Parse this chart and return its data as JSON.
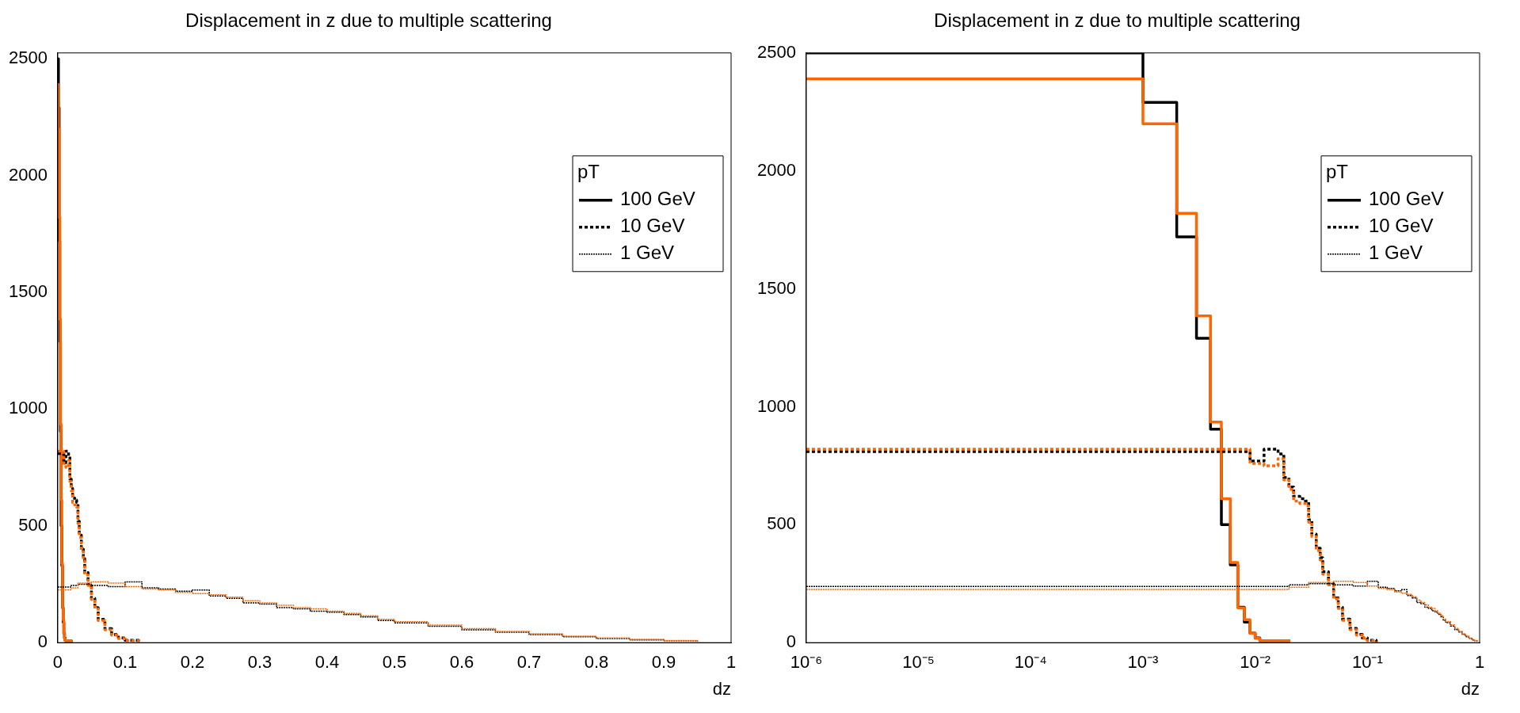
{
  "chart_data": [
    {
      "type": "step",
      "title": "Displacement in z due to multiple scattering",
      "xlabel": "dz",
      "xlim": [
        0,
        1
      ],
      "xticks": [
        0,
        0.1,
        0.2,
        0.3,
        0.4,
        0.5,
        0.6,
        0.7,
        0.8,
        0.9,
        1
      ],
      "ylim": [
        0,
        2525
      ],
      "yticks": [
        0,
        500,
        1000,
        1500,
        2000,
        2500
      ],
      "grid": false,
      "legend": "top right",
      "legend_title": "pT",
      "marker": "none",
      "series": [
        {
          "name": "100 GeV",
          "color": "#000000",
          "line_style": "solid",
          "x": [
            0,
            0.001,
            0.002,
            0.003,
            0.004,
            0.005,
            0.006,
            0.007,
            0.008,
            0.009,
            0.01,
            0.011,
            0.02
          ],
          "values": [
            2500,
            2290,
            1720,
            1290,
            905,
            500,
            330,
            150,
            87,
            40,
            20,
            8,
            0
          ]
        },
        {
          "color": "#ff6600",
          "line_style": "solid",
          "x": [
            0,
            0.001,
            0.002,
            0.003,
            0.004,
            0.005,
            0.006,
            0.007,
            0.008,
            0.009,
            0.01,
            0.011,
            0.02
          ],
          "values": [
            2390,
            2200,
            1820,
            1385,
            935,
            610,
            340,
            148,
            97,
            40,
            18,
            8,
            0
          ]
        },
        {
          "name": "10 GeV",
          "color": "#000000",
          "line_style": "dashed",
          "x": [
            0,
            0.009,
            0.012,
            0.016,
            0.018,
            0.02,
            0.022,
            0.025,
            0.028,
            0.03,
            0.032,
            0.035,
            0.038,
            0.04,
            0.045,
            0.05,
            0.055,
            0.06,
            0.07,
            0.08,
            0.09,
            0.1,
            0.12
          ],
          "values": [
            810,
            770,
            820,
            800,
            700,
            660,
            620,
            610,
            600,
            520,
            460,
            400,
            360,
            300,
            250,
            190,
            150,
            100,
            60,
            35,
            20,
            10,
            0
          ]
        },
        {
          "color": "#ff6600",
          "line_style": "dashed",
          "x": [
            0,
            0.009,
            0.012,
            0.016,
            0.018,
            0.02,
            0.022,
            0.025,
            0.028,
            0.03,
            0.032,
            0.035,
            0.038,
            0.04,
            0.045,
            0.05,
            0.055,
            0.06,
            0.07,
            0.08,
            0.09,
            0.1,
            0.12
          ],
          "values": [
            820,
            760,
            750,
            780,
            690,
            650,
            600,
            590,
            580,
            510,
            450,
            390,
            350,
            290,
            245,
            185,
            145,
            95,
            55,
            32,
            18,
            8,
            0
          ]
        },
        {
          "name": "1 GeV",
          "color": "#000000",
          "line_style": "dotted",
          "x": [
            0,
            0.02,
            0.03,
            0.05,
            0.075,
            0.1,
            0.125,
            0.15,
            0.175,
            0.2,
            0.225,
            0.25,
            0.275,
            0.3,
            0.325,
            0.35,
            0.375,
            0.4,
            0.425,
            0.45,
            0.475,
            0.5,
            0.55,
            0.6,
            0.65,
            0.7,
            0.75,
            0.8,
            0.85,
            0.9,
            0.95
          ],
          "values": [
            238,
            245,
            250,
            245,
            240,
            260,
            235,
            230,
            220,
            225,
            200,
            190,
            170,
            165,
            150,
            145,
            135,
            130,
            120,
            110,
            95,
            85,
            70,
            55,
            45,
            35,
            25,
            18,
            12,
            8,
            5
          ]
        },
        {
          "color": "#ff6600",
          "line_style": "dotted",
          "x": [
            0,
            0.02,
            0.03,
            0.05,
            0.075,
            0.1,
            0.125,
            0.15,
            0.175,
            0.2,
            0.225,
            0.25,
            0.275,
            0.3,
            0.325,
            0.35,
            0.375,
            0.4,
            0.425,
            0.45,
            0.475,
            0.5,
            0.55,
            0.6,
            0.65,
            0.7,
            0.75,
            0.8,
            0.85,
            0.9,
            0.95
          ],
          "values": [
            226,
            235,
            255,
            260,
            255,
            240,
            230,
            225,
            215,
            210,
            205,
            195,
            180,
            170,
            160,
            150,
            145,
            135,
            125,
            115,
            100,
            90,
            75,
            60,
            48,
            38,
            28,
            20,
            14,
            9,
            5
          ]
        }
      ]
    },
    {
      "type": "step",
      "title": "Displacement in z due to multiple scattering",
      "xlabel": "dz",
      "log": "x",
      "xlim": [
        1e-06,
        1
      ],
      "xticks": [
        {
          "value": 1e-06,
          "label": "10⁻⁶"
        },
        {
          "value": 1e-05,
          "label": "10⁻⁵"
        },
        {
          "value": 0.0001,
          "label": "10⁻⁴"
        },
        {
          "value": 0.001,
          "label": "10⁻³"
        },
        {
          "value": 0.01,
          "label": "10⁻²"
        },
        {
          "value": 0.1,
          "label": "10⁻¹"
        },
        1
      ],
      "ylim": [
        0,
        2500
      ],
      "yticks": [
        0,
        500,
        1000,
        1500,
        2000,
        2500
      ],
      "grid": false,
      "legend": "top right",
      "legend_title": "pT",
      "marker": "none",
      "series": [
        {
          "name": "100 GeV",
          "color": "#000000",
          "line_style": "solid",
          "x": [
            1e-06,
            0.001,
            0.002,
            0.003,
            0.004,
            0.005,
            0.006,
            0.007,
            0.008,
            0.009,
            0.01,
            0.011,
            0.02
          ],
          "values": [
            2500,
            2290,
            1720,
            1290,
            905,
            500,
            330,
            150,
            87,
            40,
            20,
            8,
            0
          ]
        },
        {
          "color": "#ff6600",
          "line_style": "solid",
          "x": [
            1e-06,
            0.001,
            0.002,
            0.003,
            0.004,
            0.005,
            0.006,
            0.007,
            0.008,
            0.009,
            0.01,
            0.011,
            0.02
          ],
          "values": [
            2390,
            2200,
            1820,
            1385,
            935,
            610,
            340,
            148,
            97,
            40,
            18,
            8,
            0
          ]
        },
        {
          "name": "10 GeV",
          "color": "#000000",
          "line_style": "dashed",
          "x": [
            1e-06,
            0.009,
            0.012,
            0.016,
            0.018,
            0.02,
            0.022,
            0.025,
            0.028,
            0.03,
            0.032,
            0.035,
            0.038,
            0.04,
            0.045,
            0.05,
            0.055,
            0.06,
            0.07,
            0.08,
            0.09,
            0.1,
            0.12
          ],
          "values": [
            810,
            770,
            820,
            800,
            700,
            660,
            620,
            610,
            600,
            520,
            460,
            400,
            360,
            300,
            250,
            190,
            150,
            100,
            60,
            35,
            20,
            10,
            0
          ]
        },
        {
          "color": "#ff6600",
          "line_style": "dashed",
          "x": [
            1e-06,
            0.009,
            0.012,
            0.016,
            0.018,
            0.02,
            0.022,
            0.025,
            0.028,
            0.03,
            0.032,
            0.035,
            0.038,
            0.04,
            0.045,
            0.05,
            0.055,
            0.06,
            0.07,
            0.08,
            0.09,
            0.1,
            0.12
          ],
          "values": [
            820,
            760,
            750,
            780,
            690,
            650,
            600,
            590,
            580,
            510,
            450,
            390,
            350,
            290,
            245,
            185,
            145,
            95,
            55,
            32,
            18,
            8,
            0
          ]
        },
        {
          "name": "1 GeV",
          "color": "#000000",
          "line_style": "dotted",
          "x": [
            1e-06,
            0.02,
            0.03,
            0.05,
            0.075,
            0.1,
            0.125,
            0.15,
            0.175,
            0.2,
            0.225,
            0.25,
            0.275,
            0.3,
            0.325,
            0.35,
            0.375,
            0.4,
            0.425,
            0.45,
            0.475,
            0.5,
            0.55,
            0.6,
            0.65,
            0.7,
            0.75,
            0.8,
            0.85,
            0.9,
            0.95
          ],
          "values": [
            238,
            245,
            250,
            245,
            240,
            260,
            235,
            230,
            220,
            225,
            200,
            190,
            170,
            165,
            150,
            145,
            135,
            130,
            120,
            110,
            95,
            85,
            70,
            55,
            45,
            35,
            25,
            18,
            12,
            8,
            5
          ]
        },
        {
          "color": "#ff6600",
          "line_style": "dotted",
          "x": [
            1e-06,
            0.02,
            0.03,
            0.05,
            0.075,
            0.1,
            0.125,
            0.15,
            0.175,
            0.2,
            0.225,
            0.25,
            0.275,
            0.3,
            0.325,
            0.35,
            0.375,
            0.4,
            0.425,
            0.45,
            0.475,
            0.5,
            0.55,
            0.6,
            0.65,
            0.7,
            0.75,
            0.8,
            0.85,
            0.9,
            0.95
          ],
          "values": [
            226,
            235,
            255,
            260,
            255,
            240,
            230,
            225,
            215,
            210,
            205,
            195,
            180,
            170,
            160,
            150,
            145,
            135,
            125,
            115,
            100,
            90,
            75,
            60,
            48,
            38,
            28,
            20,
            14,
            9,
            5
          ]
        }
      ]
    }
  ]
}
